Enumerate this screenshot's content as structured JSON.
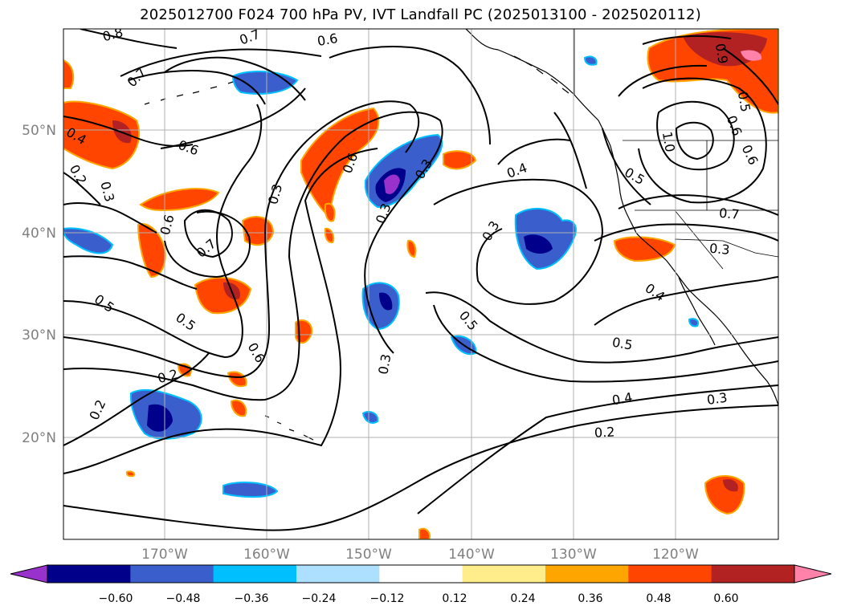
{
  "title": "2025012700 F024 700 hPa PV, IVT Landfall PC (2025013100 - 2025020112)",
  "map": {
    "lat_labels": [
      "50°N",
      "40°N",
      "30°N",
      "20°N"
    ],
    "lon_labels": [
      "170°W",
      "160°W",
      "150°W",
      "140°W",
      "130°W",
      "120°W"
    ],
    "contour_labels": [
      "0.8",
      "0.7",
      "0.7",
      "0.6",
      "0.6",
      "0.4",
      "0.2",
      "0.3",
      "0.6",
      "0.7",
      "0.3",
      "0.6",
      "0.3",
      "0.3",
      "0.4",
      "0.3",
      "0.5",
      "0.5",
      "0.6",
      "0.2",
      "0.2",
      "0.3",
      "0.5",
      "0.5",
      "0.4",
      "0.3",
      "0.2",
      "0.5",
      "0.7",
      "0.3",
      "0.4",
      "0.9",
      "1.0",
      "0.5",
      "0.6",
      "0.6"
    ]
  },
  "colorbar": {
    "ticks": [
      "−0.60",
      "−0.48",
      "−0.36",
      "−0.24",
      "−0.12",
      "0.12",
      "0.24",
      "0.36",
      "0.48",
      "0.60"
    ],
    "colors": [
      "#9932CC",
      "#00008B",
      "#3A5FCD",
      "#00BFFF",
      "#ADDFFF",
      "#FFFFFF",
      "#FFEC8B",
      "#FFA500",
      "#FF4500",
      "#B22222",
      "#FF82AB"
    ]
  }
}
